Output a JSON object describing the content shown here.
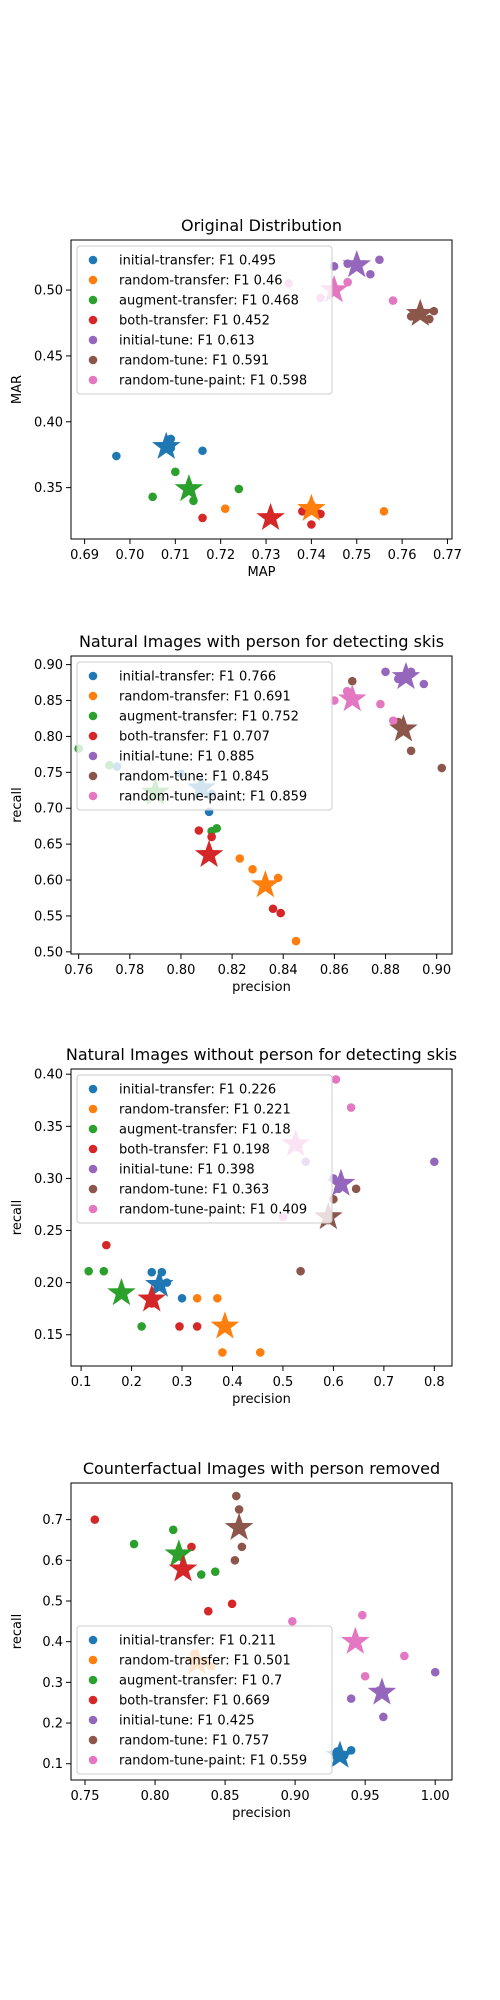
{
  "series_colors": [
    "#1f77b4",
    "#ff7f0e",
    "#2ca02c",
    "#d62728",
    "#9467bd",
    "#8c564b",
    "#e377c2"
  ],
  "chart_data": [
    {
      "type": "scatter",
      "title": "Original Distribution",
      "xlabel": "MAP",
      "ylabel": "MAR",
      "xlim": [
        0.687,
        0.771
      ],
      "ylim": [
        0.311,
        0.538
      ],
      "xticks": [
        "0.69",
        "0.70",
        "0.71",
        "0.72",
        "0.73",
        "0.74",
        "0.75",
        "0.76",
        "0.77"
      ],
      "yticks": [
        "0.35",
        "0.40",
        "0.45",
        "0.50"
      ],
      "legend_position": "upper-left",
      "series": [
        {
          "name": "initial-transfer: F1 0.495",
          "points": [
            [
              0.697,
              0.374
            ],
            [
              0.709,
              0.387
            ],
            [
              0.716,
              0.378
            ],
            [
              0.709,
              0.38
            ]
          ],
          "star": [
            0.708,
            0.381
          ]
        },
        {
          "name": "random-transfer: F1 0.46",
          "points": [
            [
              0.721,
              0.334
            ],
            [
              0.741,
              0.332
            ],
            [
              0.756,
              0.332
            ],
            [
              0.74,
              0.337
            ]
          ],
          "star": [
            0.74,
            0.334
          ]
        },
        {
          "name": "augment-transfer: F1 0.468",
          "points": [
            [
              0.705,
              0.343
            ],
            [
              0.71,
              0.362
            ],
            [
              0.714,
              0.34
            ],
            [
              0.724,
              0.349
            ]
          ],
          "star": [
            0.713,
            0.349
          ]
        },
        {
          "name": "both-transfer: F1 0.452",
          "points": [
            [
              0.716,
              0.327
            ],
            [
              0.738,
              0.332
            ],
            [
              0.74,
              0.322
            ],
            [
              0.742,
              0.33
            ]
          ],
          "star": [
            0.731,
            0.327
          ]
        },
        {
          "name": "initial-tune: F1 0.613",
          "points": [
            [
              0.745,
              0.518
            ],
            [
              0.753,
              0.512
            ],
            [
              0.755,
              0.523
            ],
            [
              0.748,
              0.52
            ]
          ],
          "star": [
            0.75,
            0.519
          ]
        },
        {
          "name": "random-tune: F1 0.591",
          "points": [
            [
              0.762,
              0.48
            ],
            [
              0.766,
              0.478
            ],
            [
              0.767,
              0.484
            ],
            [
              0.764,
              0.481
            ]
          ],
          "star": [
            0.764,
            0.482
          ]
        },
        {
          "name": "random-tune-paint: F1 0.598",
          "points": [
            [
              0.735,
              0.505
            ],
            [
              0.742,
              0.494
            ],
            [
              0.748,
              0.506
            ],
            [
              0.758,
              0.492
            ]
          ],
          "star": [
            0.745,
            0.5
          ]
        }
      ]
    },
    {
      "type": "scatter",
      "title": "Natural Images with person for detecting skis",
      "xlabel": "precision",
      "ylabel": "recall",
      "xlim": [
        0.757,
        0.906
      ],
      "ylim": [
        0.497,
        0.912
      ],
      "xticks": [
        "0.76",
        "0.78",
        "0.80",
        "0.82",
        "0.84",
        "0.86",
        "0.88",
        "0.90"
      ],
      "yticks": [
        "0.50",
        "0.55",
        "0.60",
        "0.65",
        "0.70",
        "0.75",
        "0.80",
        "0.85",
        "0.90"
      ],
      "legend_position": "upper-left",
      "series": [
        {
          "name": "initial-transfer: F1 0.766",
          "points": [
            [
              0.775,
              0.758
            ],
            [
              0.8,
              0.748
            ],
            [
              0.811,
              0.695
            ],
            [
              0.812,
              0.72
            ]
          ],
          "star": [
            0.808,
            0.728
          ]
        },
        {
          "name": "random-transfer: F1 0.691",
          "points": [
            [
              0.823,
              0.63
            ],
            [
              0.828,
              0.615
            ],
            [
              0.838,
              0.603
            ],
            [
              0.845,
              0.515
            ]
          ],
          "star": [
            0.833,
            0.593
          ]
        },
        {
          "name": "augment-transfer: F1 0.752",
          "points": [
            [
              0.76,
              0.783
            ],
            [
              0.772,
              0.76
            ],
            [
              0.812,
              0.668
            ],
            [
              0.814,
              0.672
            ]
          ],
          "star": [
            0.79,
            0.722
          ]
        },
        {
          "name": "both-transfer: F1 0.707",
          "points": [
            [
              0.807,
              0.669
            ],
            [
              0.836,
              0.56
            ],
            [
              0.839,
              0.554
            ],
            [
              0.812,
              0.66
            ]
          ],
          "star": [
            0.811,
            0.635
          ]
        },
        {
          "name": "initial-tune: F1 0.885",
          "points": [
            [
              0.88,
              0.89
            ],
            [
              0.895,
              0.873
            ],
            [
              0.885,
              0.88
            ],
            [
              0.89,
              0.89
            ]
          ],
          "star": [
            0.888,
            0.883
          ]
        },
        {
          "name": "random-tune: F1 0.845",
          "points": [
            [
              0.867,
              0.877
            ],
            [
              0.89,
              0.78
            ],
            [
              0.902,
              0.756
            ],
            [
              0.885,
              0.82
            ]
          ],
          "star": [
            0.887,
            0.81
          ]
        },
        {
          "name": "random-tune-paint: F1 0.859",
          "points": [
            [
              0.865,
              0.863
            ],
            [
              0.878,
              0.845
            ],
            [
              0.883,
              0.822
            ],
            [
              0.86,
              0.85
            ]
          ],
          "star": [
            0.867,
            0.852
          ]
        }
      ]
    },
    {
      "type": "scatter",
      "title": "Natural Images without person for detecting skis",
      "xlabel": "precision",
      "ylabel": "recall",
      "xlim": [
        0.08,
        0.835
      ],
      "ylim": [
        0.12,
        0.405
      ],
      "xticks": [
        "0.1",
        "0.2",
        "0.3",
        "0.4",
        "0.5",
        "0.6",
        "0.7",
        "0.8"
      ],
      "yticks": [
        "0.15",
        "0.20",
        "0.25",
        "0.30",
        "0.35",
        "0.40"
      ],
      "legend_position": "upper-left",
      "series": [
        {
          "name": "initial-transfer: F1 0.226",
          "points": [
            [
              0.24,
              0.21
            ],
            [
              0.26,
              0.21
            ],
            [
              0.3,
              0.185
            ],
            [
              0.27,
              0.2
            ]
          ],
          "star": [
            0.255,
            0.198
          ]
        },
        {
          "name": "random-transfer: F1 0.221",
          "points": [
            [
              0.33,
              0.185
            ],
            [
              0.37,
              0.185
            ],
            [
              0.38,
              0.133
            ],
            [
              0.455,
              0.133
            ]
          ],
          "star": [
            0.385,
            0.158
          ]
        },
        {
          "name": "augment-transfer: F1 0.18",
          "points": [
            [
              0.115,
              0.211
            ],
            [
              0.145,
              0.211
            ],
            [
              0.22,
              0.158
            ],
            [
              0.18,
              0.19
            ]
          ],
          "star": [
            0.18,
            0.19
          ]
        },
        {
          "name": "both-transfer: F1 0.198",
          "points": [
            [
              0.15,
              0.236
            ],
            [
              0.295,
              0.158
            ],
            [
              0.33,
              0.158
            ],
            [
              0.24,
              0.18
            ]
          ],
          "star": [
            0.24,
            0.184
          ]
        },
        {
          "name": "initial-tune: F1 0.398",
          "points": [
            [
              0.545,
              0.316
            ],
            [
              0.8,
              0.316
            ],
            [
              0.61,
              0.29
            ],
            [
              0.6,
              0.3
            ]
          ],
          "star": [
            0.615,
            0.295
          ]
        },
        {
          "name": "random-tune: F1 0.363",
          "points": [
            [
              0.535,
              0.211
            ],
            [
              0.645,
              0.29
            ],
            [
              0.59,
              0.26
            ],
            [
              0.6,
              0.28
            ]
          ],
          "star": [
            0.59,
            0.263
          ]
        },
        {
          "name": "random-tune-paint: F1 0.409",
          "points": [
            [
              0.605,
              0.395
            ],
            [
              0.635,
              0.368
            ],
            [
              0.5,
              0.263
            ],
            [
              0.53,
              0.33
            ]
          ],
          "star": [
            0.525,
            0.333
          ]
        }
      ]
    },
    {
      "type": "scatter",
      "title": "Counterfactual Images with person removed",
      "xlabel": "precision",
      "ylabel": "recall",
      "xlim": [
        0.74,
        1.012
      ],
      "ylim": [
        0.06,
        0.79
      ],
      "xticks": [
        "0.75",
        "0.80",
        "0.85",
        "0.90",
        "0.95",
        "1.00"
      ],
      "yticks": [
        "0.1",
        "0.2",
        "0.3",
        "0.4",
        "0.5",
        "0.6",
        "0.7"
      ],
      "legend_position": "lower-left",
      "series": [
        {
          "name": "initial-transfer: F1 0.211",
          "points": [
            [
              0.94,
              0.133
            ],
            [
              0.93,
              0.115
            ],
            [
              0.935,
              0.12
            ],
            [
              0.93,
              0.13
            ]
          ],
          "star": [
            0.932,
            0.12
          ]
        },
        {
          "name": "random-transfer: F1 0.501",
          "points": [
            [
              0.83,
              0.36
            ],
            [
              0.835,
              0.35
            ],
            [
              0.84,
              0.34
            ],
            [
              0.828,
              0.37
            ]
          ],
          "star": [
            0.83,
            0.35
          ]
        },
        {
          "name": "augment-transfer: F1 0.7",
          "points": [
            [
              0.785,
              0.64
            ],
            [
              0.813,
              0.675
            ],
            [
              0.833,
              0.565
            ],
            [
              0.843,
              0.572
            ]
          ],
          "star": [
            0.817,
            0.615
          ]
        },
        {
          "name": "both-transfer: F1 0.669",
          "points": [
            [
              0.757,
              0.7
            ],
            [
              0.826,
              0.633
            ],
            [
              0.838,
              0.475
            ],
            [
              0.855,
              0.493
            ]
          ],
          "star": [
            0.82,
            0.578
          ]
        },
        {
          "name": "initial-tune: F1 0.425",
          "points": [
            [
              1.0,
              0.325
            ],
            [
              0.963,
              0.215
            ],
            [
              0.94,
              0.26
            ],
            [
              0.96,
              0.28
            ]
          ],
          "star": [
            0.962,
            0.275
          ]
        },
        {
          "name": "random-tune: F1 0.757",
          "points": [
            [
              0.858,
              0.758
            ],
            [
              0.86,
              0.725
            ],
            [
              0.862,
              0.633
            ],
            [
              0.857,
              0.6
            ]
          ],
          "star": [
            0.86,
            0.68
          ]
        },
        {
          "name": "random-tune-paint: F1 0.559",
          "points": [
            [
              0.898,
              0.45
            ],
            [
              0.948,
              0.465
            ],
            [
              0.978,
              0.365
            ],
            [
              0.95,
              0.315
            ]
          ],
          "star": [
            0.943,
            0.4
          ]
        }
      ]
    }
  ]
}
